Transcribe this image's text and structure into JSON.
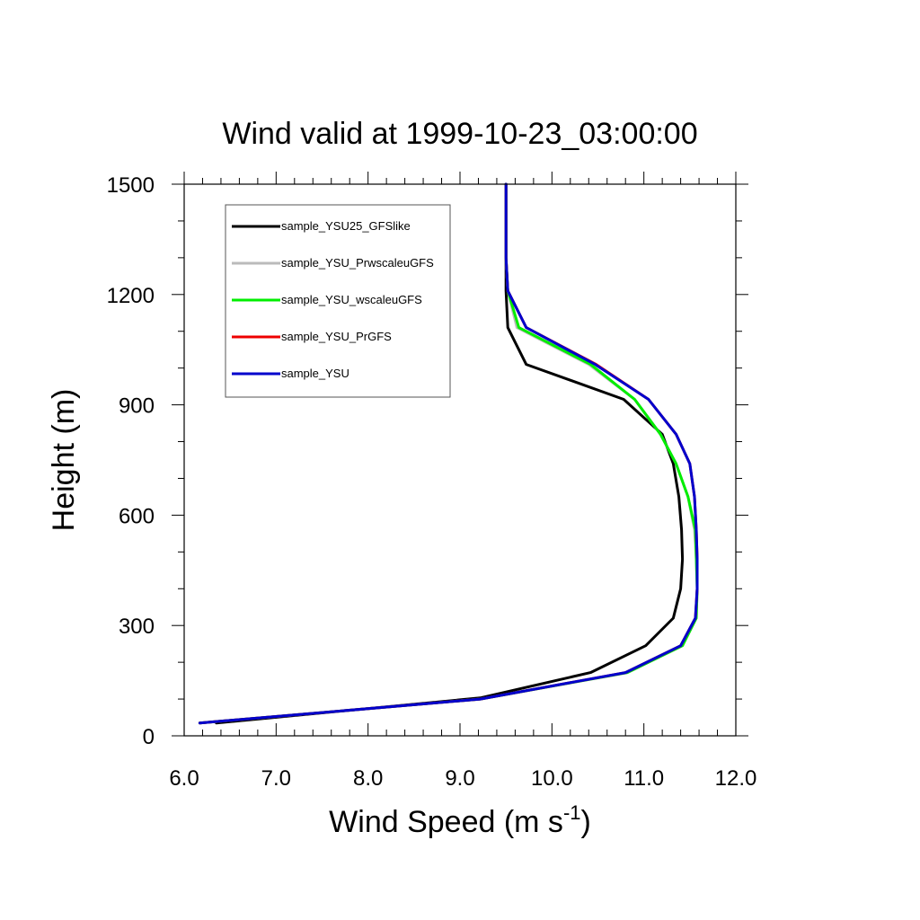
{
  "chart_data": {
    "type": "line",
    "title": "Wind valid at 1999-10-23_03:00:00",
    "xlabel": "Wind Speed (m s",
    "xlabel_superscript": "-1",
    "xlabel_suffix": ")",
    "ylabel": "Height (m)",
    "xlim": [
      6.0,
      12.0
    ],
    "ylim": [
      0,
      1500
    ],
    "xticks": [
      "6.0",
      "7.0",
      "8.0",
      "9.0",
      "10.0",
      "11.0",
      "12.0"
    ],
    "yticks": [
      "0",
      "300",
      "600",
      "900",
      "1200",
      "1500"
    ],
    "grid": false,
    "legend_position": "top-left",
    "series": [
      {
        "name": "sample_YSU25_GFSlike",
        "color": "#000000",
        "points": [
          [
            6.35,
            35
          ],
          [
            9.22,
            103
          ],
          [
            10.42,
            172
          ],
          [
            11.02,
            245
          ],
          [
            11.32,
            320
          ],
          [
            11.4,
            400
          ],
          [
            11.42,
            480
          ],
          [
            11.41,
            560
          ],
          [
            11.38,
            650
          ],
          [
            11.32,
            740
          ],
          [
            11.2,
            820
          ],
          [
            10.78,
            915
          ],
          [
            9.72,
            1010
          ],
          [
            9.52,
            1110
          ],
          [
            9.5,
            1210
          ],
          [
            9.5,
            1300
          ],
          [
            9.5,
            1400
          ],
          [
            9.5,
            1500
          ]
        ]
      },
      {
        "name": "sample_YSU_PrwscaleuGFS",
        "color": "#bbbbbb",
        "points": [
          [
            6.17,
            35
          ],
          [
            9.22,
            100
          ],
          [
            10.82,
            172
          ],
          [
            11.42,
            245
          ],
          [
            11.57,
            320
          ],
          [
            11.58,
            400
          ],
          [
            11.57,
            480
          ],
          [
            11.55,
            560
          ],
          [
            11.48,
            650
          ],
          [
            11.35,
            740
          ],
          [
            11.18,
            820
          ],
          [
            10.9,
            915
          ],
          [
            10.4,
            1010
          ],
          [
            9.62,
            1110
          ],
          [
            9.52,
            1210
          ],
          [
            9.5,
            1300
          ],
          [
            9.5,
            1400
          ],
          [
            9.5,
            1500
          ]
        ]
      },
      {
        "name": "sample_YSU_wscaleuGFS",
        "color": "#00ee00",
        "points": [
          [
            6.17,
            35
          ],
          [
            9.22,
            100
          ],
          [
            10.82,
            172
          ],
          [
            11.42,
            245
          ],
          [
            11.57,
            320
          ],
          [
            11.58,
            400
          ],
          [
            11.57,
            480
          ],
          [
            11.56,
            560
          ],
          [
            11.48,
            650
          ],
          [
            11.35,
            740
          ],
          [
            11.18,
            820
          ],
          [
            10.9,
            915
          ],
          [
            10.42,
            1010
          ],
          [
            9.64,
            1110
          ],
          [
            9.52,
            1210
          ],
          [
            9.5,
            1300
          ],
          [
            9.5,
            1400
          ],
          [
            9.5,
            1500
          ]
        ]
      },
      {
        "name": "sample_YSU_PrGFS",
        "color": "#ee0000",
        "points": [
          [
            6.17,
            35
          ],
          [
            9.22,
            100
          ],
          [
            10.8,
            172
          ],
          [
            11.4,
            245
          ],
          [
            11.56,
            320
          ],
          [
            11.58,
            400
          ],
          [
            11.58,
            480
          ],
          [
            11.57,
            560
          ],
          [
            11.55,
            650
          ],
          [
            11.5,
            740
          ],
          [
            11.35,
            820
          ],
          [
            11.05,
            915
          ],
          [
            10.48,
            1010
          ],
          [
            9.72,
            1110
          ],
          [
            9.52,
            1210
          ],
          [
            9.5,
            1300
          ],
          [
            9.5,
            1400
          ],
          [
            9.5,
            1500
          ]
        ]
      },
      {
        "name": "sample_YSU",
        "color": "#0000cc",
        "points": [
          [
            6.17,
            35
          ],
          [
            9.22,
            100
          ],
          [
            10.8,
            172
          ],
          [
            11.4,
            245
          ],
          [
            11.56,
            320
          ],
          [
            11.58,
            400
          ],
          [
            11.58,
            480
          ],
          [
            11.57,
            560
          ],
          [
            11.55,
            650
          ],
          [
            11.5,
            740
          ],
          [
            11.35,
            820
          ],
          [
            11.05,
            915
          ],
          [
            10.47,
            1010
          ],
          [
            9.72,
            1110
          ],
          [
            9.52,
            1210
          ],
          [
            9.5,
            1300
          ],
          [
            9.5,
            1400
          ],
          [
            9.5,
            1500
          ]
        ]
      }
    ]
  }
}
